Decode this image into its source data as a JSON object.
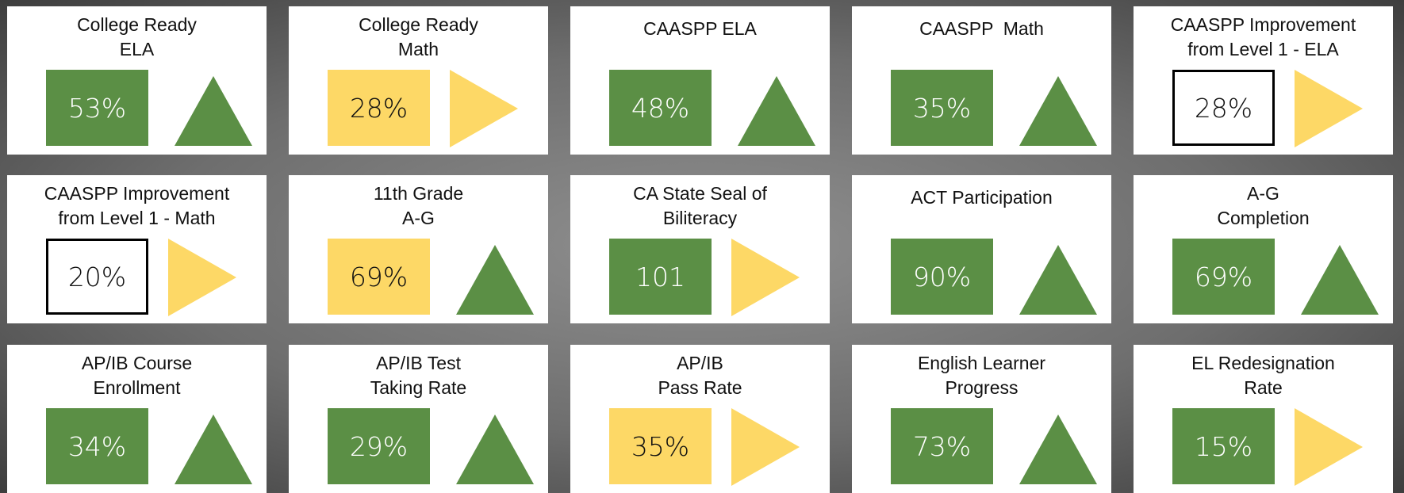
{
  "tiles": [
    {
      "title": [
        "College Ready",
        "ELA"
      ],
      "value": "53%",
      "box": "green",
      "trend": "up"
    },
    {
      "title": [
        "College Ready",
        "Math"
      ],
      "value": "28%",
      "box": "yellow",
      "trend": "right"
    },
    {
      "title": [
        "CAASPP ELA"
      ],
      "value": "48%",
      "box": "green",
      "trend": "up"
    },
    {
      "title": [
        "CAASPP  Math"
      ],
      "value": "35%",
      "box": "green",
      "trend": "up"
    },
    {
      "title": [
        "CAASPP Improvement",
        "from Level 1 - ELA"
      ],
      "value": "28%",
      "box": "outline",
      "trend": "right"
    },
    {
      "title": [
        "CAASPP Improvement",
        "from Level 1 - Math"
      ],
      "value": "20%",
      "box": "outline",
      "trend": "right"
    },
    {
      "title": [
        "11th Grade",
        "A-G"
      ],
      "value": "69%",
      "box": "yellow",
      "trend": "up"
    },
    {
      "title": [
        "CA State Seal of",
        "Biliteracy"
      ],
      "value": "101",
      "box": "green",
      "trend": "right"
    },
    {
      "title": [
        "ACT Participation"
      ],
      "value": "90%",
      "box": "green",
      "trend": "up"
    },
    {
      "title": [
        "A-G",
        "Completion"
      ],
      "value": "69%",
      "box": "green",
      "trend": "up"
    },
    {
      "title": [
        "AP/IB Course",
        "Enrollment"
      ],
      "value": "34%",
      "box": "green",
      "trend": "up"
    },
    {
      "title": [
        "AP/IB Test",
        "Taking Rate"
      ],
      "value": "29%",
      "box": "green",
      "trend": "up"
    },
    {
      "title": [
        "AP/IB",
        "Pass Rate"
      ],
      "value": "35%",
      "box": "yellow",
      "trend": "right"
    },
    {
      "title": [
        "English Learner",
        "Progress"
      ],
      "value": "73%",
      "box": "green",
      "trend": "up"
    },
    {
      "title": [
        "EL Redesignation",
        "Rate"
      ],
      "value": "15%",
      "box": "green",
      "trend": "right"
    }
  ]
}
